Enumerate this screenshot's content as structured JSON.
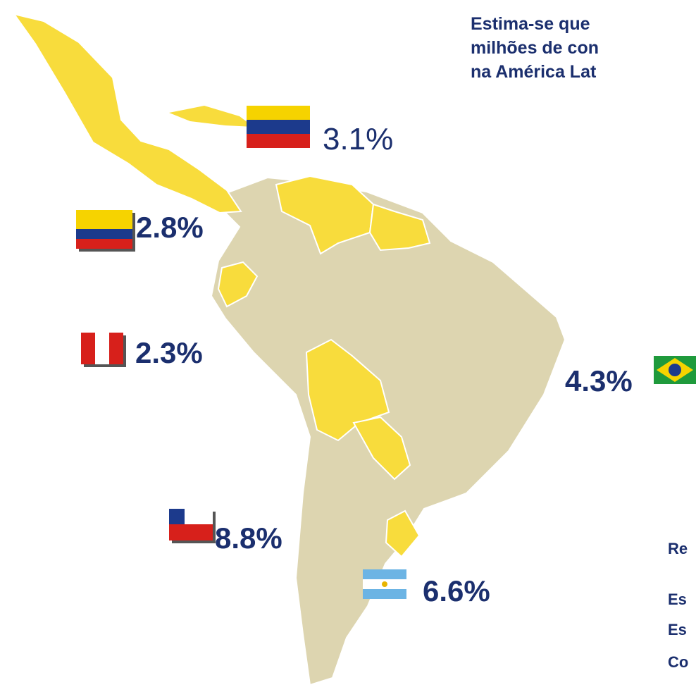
{
  "header": {
    "lines": [
      "Estima-se  que",
      "milhões de con",
      "na América Lat"
    ]
  },
  "labels": {
    "venezuela": "3.1%",
    "colombia": "2.8%",
    "peru": "2.3%",
    "brazil": "4.3%",
    "chile": "8.8%",
    "argentina": "6.6%"
  },
  "footer": {
    "lines": [
      "Re",
      "Es",
      "Es",
      "Co"
    ]
  }
}
